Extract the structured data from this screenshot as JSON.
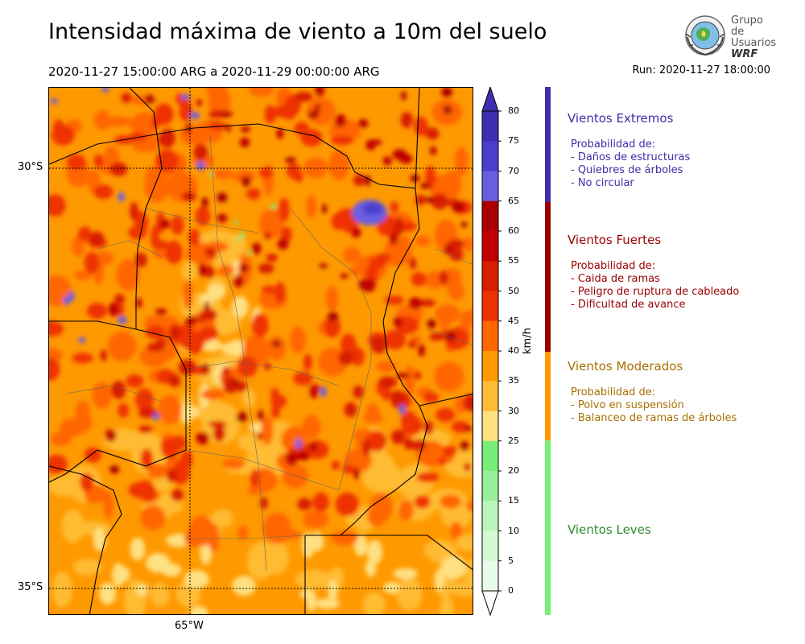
{
  "title": "Intensidad máxima de viento a 10m del suelo",
  "period": "2020-11-27 15:00:00 ARG  a  2020-11-29 00:00:00 ARG",
  "run": "Run: 2020-11-27 18:00:00",
  "logo": {
    "line1": "Grupo de",
    "line2": "Usuarios",
    "line3": "WRF"
  },
  "map": {
    "lat_labels": [
      "30°S",
      "35°S"
    ],
    "lon_labels": [
      "65°W"
    ]
  },
  "colorbar": {
    "units": "km/h",
    "ticks": [
      "80",
      "75",
      "70",
      "65",
      "60",
      "55",
      "50",
      "45",
      "40",
      "35",
      "30",
      "25",
      "20",
      "15",
      "10",
      "5",
      "0"
    ],
    "colors": [
      "#3f2fb0",
      "#4a3fcc",
      "#6a5ee0",
      "#aa0000",
      "#c00000",
      "#d81e00",
      "#ee3300",
      "#ff6600",
      "#ff9900",
      "#ffbb33",
      "#ffe082",
      "#77ee77",
      "#99f099",
      "#bbf5bb",
      "#d5f8d5",
      "#e9fbe9"
    ]
  },
  "categories": [
    {
      "name": "Vientos Extremos",
      "color": "#3c2fa8",
      "desc": "Probabilidad de:\n- Daños de estructuras\n- Quiebres de árboles\n- No circular"
    },
    {
      "name": "Vientos Fuertes",
      "color": "#9a0000",
      "desc": "Probabilidad de:\n- Caida de ramas\n- Peligro de ruptura de cableado\n- Dificultad de avance"
    },
    {
      "name": "Vientos Moderados",
      "color": "#a87000",
      "desc": "Probabilidad de:\n- Polvo en suspensión\n- Balanceo de ramas de árboles"
    },
    {
      "name": "Vientos Leves",
      "color": "#2e8b2e",
      "desc": ""
    }
  ]
}
